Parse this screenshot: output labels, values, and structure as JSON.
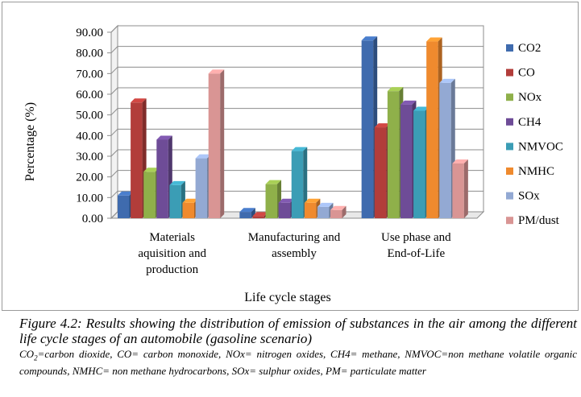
{
  "chart_data": {
    "type": "bar",
    "style": "3d-clustered-column",
    "categories": [
      [
        "Materials",
        "aquisition and",
        "production"
      ],
      [
        "Manufacturing and",
        "assembly"
      ],
      [
        "Use phase and",
        "End-of-Life"
      ]
    ],
    "series": [
      {
        "name": "CO2",
        "color": "#3F6BAE",
        "values": [
          11,
          3,
          86
        ]
      },
      {
        "name": "CO",
        "color": "#B23D3A",
        "values": [
          56,
          1,
          44
        ]
      },
      {
        "name": "NOx",
        "color": "#8FB04A",
        "values": [
          22.5,
          16.5,
          61.5
        ]
      },
      {
        "name": "CH4",
        "color": "#6E4C97",
        "values": [
          38,
          7.5,
          55
        ]
      },
      {
        "name": "NMVOC",
        "color": "#3B9DB5",
        "values": [
          16,
          32.5,
          52
        ]
      },
      {
        "name": "NMHC",
        "color": "#EF8A2E",
        "values": [
          7.5,
          7.5,
          85.5
        ]
      },
      {
        "name": "SOx",
        "color": "#93A9D3",
        "values": [
          29,
          5.5,
          65.5
        ]
      },
      {
        "name": "PM/dust",
        "color": "#D99594",
        "values": [
          70,
          4,
          26.5
        ]
      }
    ],
    "yticks": [
      "0.00",
      "10.00",
      "20.00",
      "30.00",
      "40.00",
      "50.00",
      "60.00",
      "70.00",
      "80.00",
      "90.00"
    ],
    "ylim": [
      0,
      90
    ],
    "ylabel": "Percentage (%)",
    "xlabel": "Life cycle stages",
    "legend_position": "right",
    "grid": true
  },
  "caption": {
    "title": "Figure 4.2: Results showing the distribution of emission of substances in the air among the different life cycle stages of an automobile (gasoline scenario)",
    "legend_prefix_co": "CO",
    "legend_prefix_sub": "2",
    "legend_rest": "=carbon dioxide, CO= carbon monoxide, NOx= nitrogen oxides, CH4= methane, NMVOC=non methane volatile organic compounds, NMHC= non methane hydrocarbons, SOx= sulphur oxides, PM= particulate matter"
  }
}
